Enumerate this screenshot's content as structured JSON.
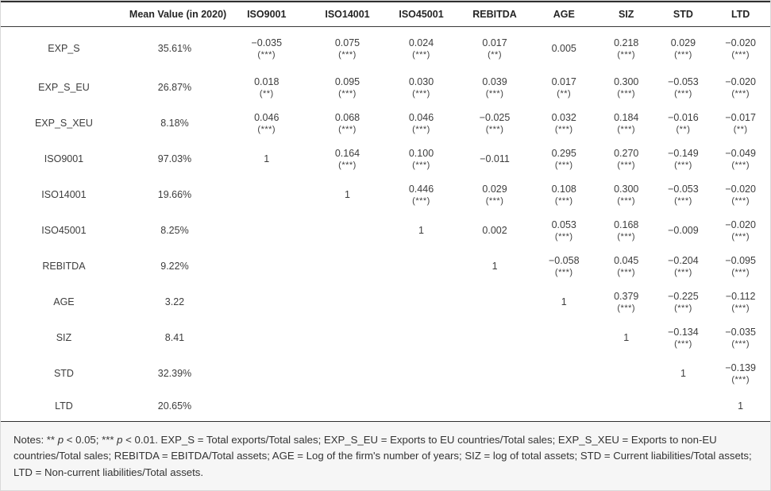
{
  "table": {
    "header": [
      "",
      "Mean Value (in 2020)",
      "ISO9001",
      "ISO14001",
      "ISO45001",
      "REBITDA",
      "AGE",
      "SIZ",
      "STD",
      "LTD"
    ],
    "rows": [
      {
        "label": "EXP_S",
        "mean": "35.61%",
        "cells": [
          [
            "−0.035",
            "(***)"
          ],
          [
            "0.075",
            "(***)"
          ],
          [
            "0.024",
            "(***)"
          ],
          [
            "0.017",
            "(**)"
          ],
          [
            "0.005",
            ""
          ],
          [
            "0.218",
            "(***)"
          ],
          [
            "0.029",
            "(***)"
          ],
          [
            "−0.020",
            "(***)"
          ]
        ]
      },
      {
        "label": "EXP_S_EU",
        "mean": "26.87%",
        "cells": [
          [
            "0.018",
            "(**)"
          ],
          [
            "0.095",
            "(***)"
          ],
          [
            "0.030",
            "(***)"
          ],
          [
            "0.039",
            "(***)"
          ],
          [
            "0.017",
            "(**)"
          ],
          [
            "0.300",
            "(***)"
          ],
          [
            "−0.053",
            "(***)"
          ],
          [
            "−0.020",
            "(***)"
          ]
        ]
      },
      {
        "label": "EXP_S_XEU",
        "mean": "8.18%",
        "cells": [
          [
            "0.046",
            "(***)"
          ],
          [
            "0.068",
            "(***)"
          ],
          [
            "0.046",
            "(***)"
          ],
          [
            "−0.025",
            "(***)"
          ],
          [
            "0.032",
            "(***)"
          ],
          [
            "0.184",
            "(***)"
          ],
          [
            "−0.016",
            "(**)"
          ],
          [
            "−0.017",
            "(**)"
          ]
        ]
      },
      {
        "label": "ISO9001",
        "mean": "97.03%",
        "cells": [
          [
            "1",
            ""
          ],
          [
            "0.164",
            "(***)"
          ],
          [
            "0.100",
            "(***)"
          ],
          [
            "−0.011",
            ""
          ],
          [
            "0.295",
            "(***)"
          ],
          [
            "0.270",
            "(***)"
          ],
          [
            "−0.149",
            "(***)"
          ],
          [
            "−0.049",
            "(***)"
          ]
        ]
      },
      {
        "label": "ISO14001",
        "mean": "19.66%",
        "cells": [
          null,
          [
            "1",
            ""
          ],
          [
            "0.446",
            "(***)"
          ],
          [
            "0.029",
            "(***)"
          ],
          [
            "0.108",
            "(***)"
          ],
          [
            "0.300",
            "(***)"
          ],
          [
            "−0.053",
            "(***)"
          ],
          [
            "−0.020",
            "(***)"
          ]
        ]
      },
      {
        "label": "ISO45001",
        "mean": "8.25%",
        "cells": [
          null,
          null,
          [
            "1",
            ""
          ],
          [
            "0.002",
            ""
          ],
          [
            "0.053",
            "(***)"
          ],
          [
            "0.168",
            "(***)"
          ],
          [
            "−0.009",
            ""
          ],
          [
            "−0.020",
            "(***)"
          ]
        ]
      },
      {
        "label": "REBITDA",
        "mean": "9.22%",
        "cells": [
          null,
          null,
          null,
          [
            "1",
            ""
          ],
          [
            "−0.058",
            "(***)"
          ],
          [
            "0.045",
            "(***)"
          ],
          [
            "−0.204",
            "(***)"
          ],
          [
            "−0.095",
            "(***)"
          ]
        ]
      },
      {
        "label": "AGE",
        "mean": "3.22",
        "cells": [
          null,
          null,
          null,
          null,
          [
            "1",
            ""
          ],
          [
            "0.379",
            "(***)"
          ],
          [
            "−0.225",
            "(***)"
          ],
          [
            "−0.112",
            "(***)"
          ]
        ]
      },
      {
        "label": "SIZ",
        "mean": "8.41",
        "cells": [
          null,
          null,
          null,
          null,
          null,
          [
            "1",
            ""
          ],
          [
            "−0.134",
            "(***)"
          ],
          [
            "−0.035",
            "(***)"
          ]
        ]
      },
      {
        "label": "STD",
        "mean": "32.39%",
        "cells": [
          null,
          null,
          null,
          null,
          null,
          null,
          [
            "1",
            ""
          ],
          [
            "−0.139",
            "(***)"
          ]
        ]
      },
      {
        "label": "LTD",
        "mean": "20.65%",
        "cells": [
          null,
          null,
          null,
          null,
          null,
          null,
          null,
          [
            "1",
            ""
          ]
        ]
      }
    ]
  },
  "notes": {
    "segments": [
      {
        "text": "Notes: ** ",
        "italic": false
      },
      {
        "text": "p",
        "italic": true
      },
      {
        "text": " < 0.05; *** ",
        "italic": false
      },
      {
        "text": "p",
        "italic": true
      },
      {
        "text": " < 0.01. EXP_S = Total exports/Total sales; EXP_S_EU = Exports to EU countries/Total sales; EXP_S_XEU = Exports to non-EU countries/Total sales; REBITDA = EBITDA/Total assets; AGE = Log of the firm's number of years; SIZ = log of total assets; STD = Current liabilities/Total assets; LTD = Non-current liabilities/Total assets.",
        "italic": false
      }
    ]
  },
  "colors": {
    "text": "#3d3d3d",
    "header_text": "#252525",
    "border_dark": "#2f2f2f",
    "border_light": "#d9d9d9",
    "notes_background": "#f6f6f6",
    "table_background": "#ffffff"
  }
}
